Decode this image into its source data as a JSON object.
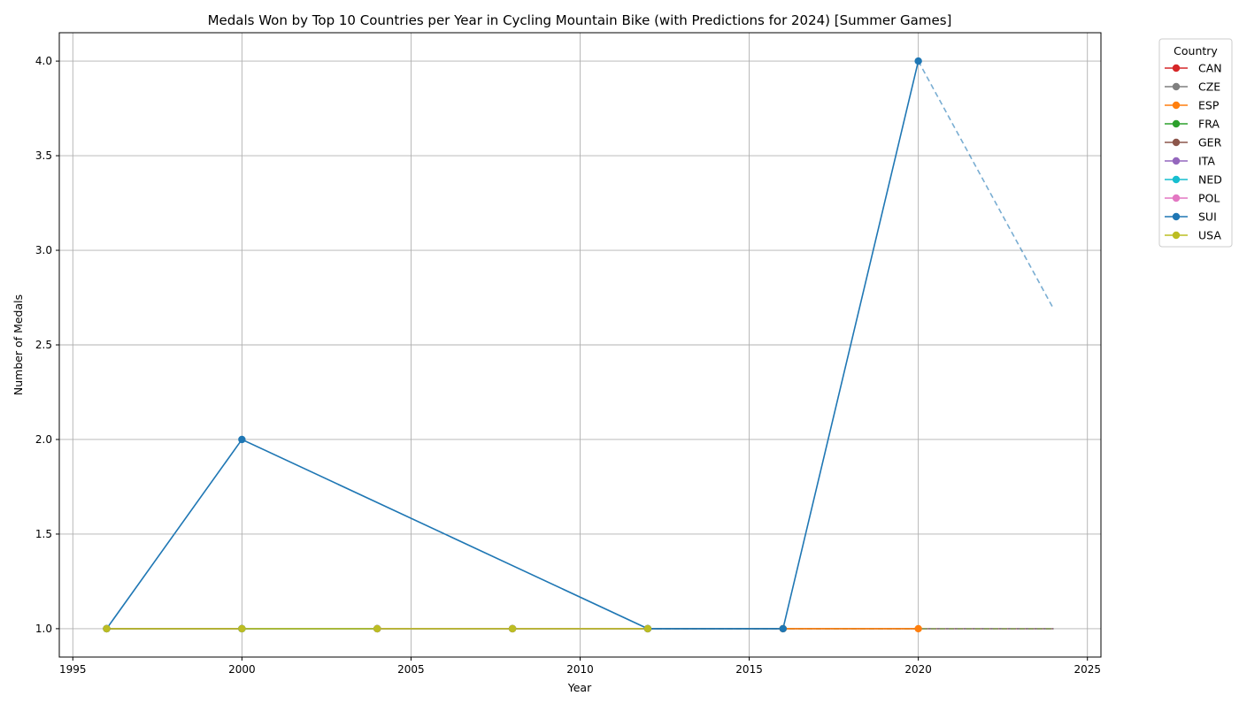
{
  "chart_data": {
    "type": "line",
    "title": "Medals Won by Top 10 Countries per Year in Cycling Mountain Bike (with Predictions for 2024) [Summer Games]",
    "xlabel": "Year",
    "ylabel": "Number of Medals",
    "xlim": [
      1994.6,
      2025.4
    ],
    "ylim": [
      0.85,
      4.15
    ],
    "xticks": [
      1995,
      2000,
      2005,
      2010,
      2015,
      2020,
      2025
    ],
    "yticks": [
      1.0,
      1.5,
      2.0,
      2.5,
      3.0,
      3.5,
      4.0
    ],
    "xtick_labels": [
      "1995",
      "2000",
      "2005",
      "2010",
      "2015",
      "2020",
      "2025"
    ],
    "ytick_labels": [
      "1.0",
      "1.5",
      "2.0",
      "2.5",
      "3.0",
      "3.5",
      "4.0"
    ],
    "grid": true,
    "legend": {
      "title": "Country",
      "placement": "outside-right-top"
    },
    "series": [
      {
        "name": "CAN",
        "color": "#d62728",
        "x": [
          1996,
          2000,
          2004,
          2008,
          2012
        ],
        "y": [
          1,
          1,
          1,
          1,
          1
        ],
        "prediction": {
          "x": [
            2012,
            2024
          ],
          "y": [
            1,
            1
          ]
        }
      },
      {
        "name": "CZE",
        "color": "#7f7f7f",
        "x": [
          2004,
          2008,
          2012,
          2016
        ],
        "y": [
          1,
          1,
          1,
          1
        ],
        "prediction": {
          "x": [
            2016,
            2024
          ],
          "y": [
            1,
            1
          ]
        }
      },
      {
        "name": "ESP",
        "color": "#ff7f0e",
        "x": [
          2016,
          2020
        ],
        "y": [
          1,
          1
        ],
        "prediction": {
          "x": [
            2020,
            2024
          ],
          "y": [
            1,
            1
          ]
        }
      },
      {
        "name": "FRA",
        "color": "#2ca02c",
        "x": [
          1996,
          2000,
          2004,
          2008
        ],
        "y": [
          1,
          1,
          1,
          1
        ],
        "prediction": {
          "x": [
            2008,
            2024
          ],
          "y": [
            1,
            1
          ]
        }
      },
      {
        "name": "GER",
        "color": "#8c564b",
        "x": [
          2000,
          2004,
          2008,
          2012
        ],
        "y": [
          1,
          1,
          1,
          1
        ],
        "prediction": {
          "x": [
            2012,
            2024
          ],
          "y": [
            1,
            1
          ]
        }
      },
      {
        "name": "ITA",
        "color": "#9467bd",
        "x": [
          1996,
          2000,
          2004
        ],
        "y": [
          1,
          1,
          1
        ],
        "prediction": {
          "x": [
            2004,
            2024
          ],
          "y": [
            1,
            1
          ]
        }
      },
      {
        "name": "NED",
        "color": "#17becf",
        "x": [
          2000,
          2004,
          2008,
          2012
        ],
        "y": [
          1,
          1,
          1,
          1
        ],
        "prediction": {
          "x": [
            2012,
            2024
          ],
          "y": [
            1,
            1
          ]
        }
      },
      {
        "name": "POL",
        "color": "#e377c2",
        "x": [
          2004,
          2008,
          2012
        ],
        "y": [
          1,
          1,
          1
        ],
        "prediction": {
          "x": [
            2012,
            2024
          ],
          "y": [
            1,
            1
          ]
        }
      },
      {
        "name": "SUI",
        "color": "#1f77b4",
        "x": [
          1996,
          2000,
          2012,
          2016,
          2020
        ],
        "y": [
          1,
          2,
          1,
          1,
          4
        ],
        "prediction": {
          "x": [
            2012,
            2024
          ],
          "y": [
            1,
            1
          ]
        },
        "prediction_2": {
          "x": [
            2020,
            2024
          ],
          "y": [
            4,
            2.69
          ]
        }
      },
      {
        "name": "USA",
        "color": "#bcbd22",
        "x": [
          1996,
          2000,
          2004,
          2008,
          2012
        ],
        "y": [
          1,
          1,
          1,
          1,
          1
        ],
        "prediction": {
          "x": [
            2012,
            2024
          ],
          "y": [
            1,
            1
          ]
        }
      }
    ]
  }
}
